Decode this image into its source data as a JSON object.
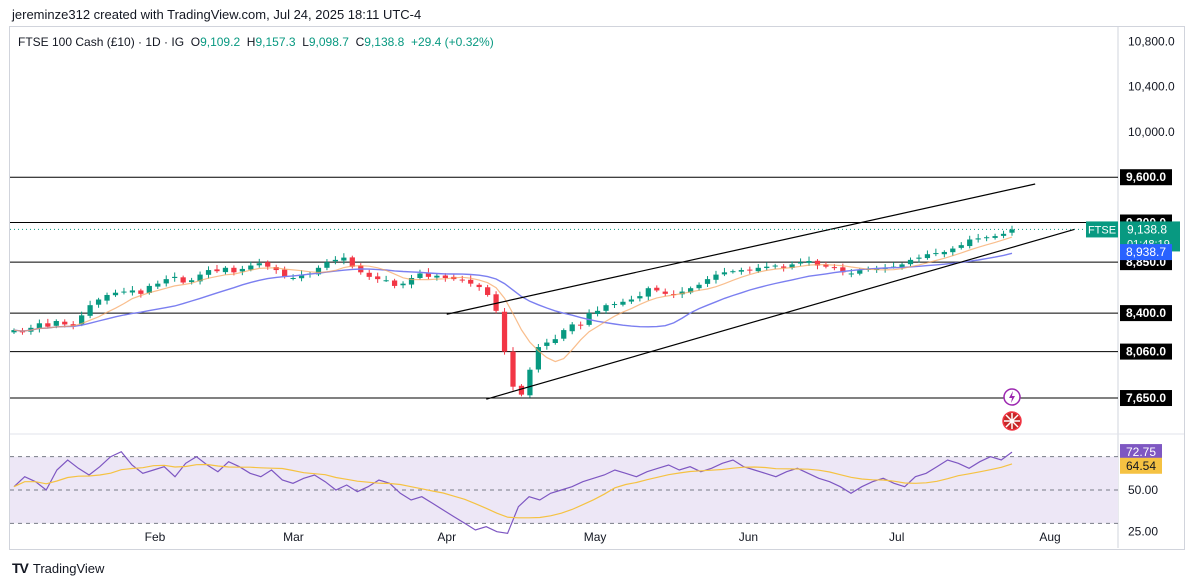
{
  "header": {
    "attribution": "jereminze312 created with TradingView.com, Jul 24, 2025 18:11 UTC-4",
    "symbol_line": "FTSE 100 Cash (£10) · 1D · IG",
    "open_label": "O",
    "open": "9,109.2",
    "high_label": "H",
    "high": "9,157.3",
    "low_label": "L",
    "low": "9,098.7",
    "close_label": "C",
    "close": "9,138.8",
    "change": "+29.4 (+0.32%)"
  },
  "footer": {
    "brand": "TradingView",
    "logo": "TV"
  },
  "colors": {
    "up": "#089981",
    "down": "#f23645",
    "ma_blue": "#7b7ff0",
    "ma_orange": "#f7a35c",
    "rsi_line": "#7e57c2",
    "rsi_ma": "#f5c242",
    "rsi_band": "#ede7f6",
    "price_tag": "#089981",
    "ma_tag": "#2962ff",
    "level_tag": "#000000"
  },
  "chart_data": [
    {
      "type": "candlestick",
      "symbol": "FTSE",
      "y_axis_ticks": [
        "10,800.0",
        "10,400.0",
        "10,000.0"
      ],
      "ylim": [
        7350,
        10900
      ],
      "x_axis_labels": [
        "Feb",
        "Mar",
        "Apr",
        "May",
        "Jun",
        "Jul",
        "Aug"
      ],
      "horizontal_levels": [
        "9,600.0",
        "9,200.0",
        "8,850.0",
        "8,400.0",
        "8,060.0",
        "7,650.0"
      ],
      "last_price": {
        "label": "FTSE",
        "value": "9,138.8",
        "countdown": "01:48:19"
      },
      "moving_average": {
        "value": "8,938.7"
      },
      "trend_channel": {
        "upper": [
          {
            "date": "2025-04-01",
            "price": 8390
          },
          {
            "date": "2025-07-29",
            "price": 9540
          }
        ],
        "lower": [
          {
            "date": "2025-04-09",
            "price": 7640
          },
          {
            "date": "2025-08-06",
            "price": 9140
          }
        ]
      },
      "candles_close": [
        8250,
        8230,
        8270,
        8310,
        8280,
        8330,
        8300,
        8290,
        8380,
        8470,
        8520,
        8560,
        8580,
        8590,
        8600,
        8570,
        8640,
        8660,
        8700,
        8720,
        8670,
        8690,
        8740,
        8780,
        8770,
        8800,
        8760,
        8790,
        8820,
        8840,
        8810,
        8780,
        8720,
        8710,
        8740,
        8750,
        8800,
        8850,
        8870,
        8890,
        8810,
        8760,
        8720,
        8700,
        8690,
        8640,
        8660,
        8710,
        8750,
        8720,
        8730,
        8710,
        8700,
        8690,
        8660,
        8630,
        8560,
        8420,
        8060,
        7750,
        7680,
        7900,
        8100,
        8140,
        8170,
        8250,
        8300,
        8290,
        8400,
        8420,
        8470,
        8480,
        8500,
        8520,
        8550,
        8620,
        8600,
        8570,
        8560,
        8590,
        8620,
        8650,
        8700,
        8740,
        8760,
        8770,
        8780,
        8780,
        8800,
        8810,
        8820,
        8800,
        8830,
        8850,
        8860,
        8820,
        8810,
        8800,
        8760,
        8750,
        8780,
        8790,
        8790,
        8800,
        8810,
        8830,
        8870,
        8890,
        8920,
        8930,
        8940,
        8970,
        9000,
        9050,
        9060,
        9070,
        9080,
        9100,
        9138.8
      ]
    },
    {
      "type": "line",
      "name": "RSI",
      "y_axis_ticks": [
        "72.75",
        "64.54",
        "50.00",
        "25.00"
      ],
      "ylim": [
        20,
        80
      ],
      "rsi_value": "72.75",
      "rsi_ma_value": "64.54",
      "values": [
        52,
        58,
        55,
        50,
        62,
        68,
        63,
        59,
        64,
        70,
        73,
        65,
        60,
        62,
        64,
        58,
        66,
        70,
        65,
        61,
        67,
        64,
        60,
        58,
        62,
        56,
        54,
        57,
        59,
        55,
        50,
        53,
        49,
        52,
        56,
        54,
        48,
        44,
        46,
        42,
        38,
        34,
        30,
        26,
        28,
        25,
        24,
        40,
        46,
        44,
        48,
        50,
        52,
        55,
        57,
        59,
        62,
        60,
        58,
        61,
        63,
        65,
        62,
        64,
        61,
        63,
        66,
        68,
        64,
        62,
        60,
        58,
        61,
        63,
        60,
        57,
        55,
        52,
        48,
        52,
        55,
        57,
        54,
        52,
        58,
        60,
        64,
        68,
        66,
        63,
        67,
        70,
        68,
        72.75
      ]
    }
  ]
}
